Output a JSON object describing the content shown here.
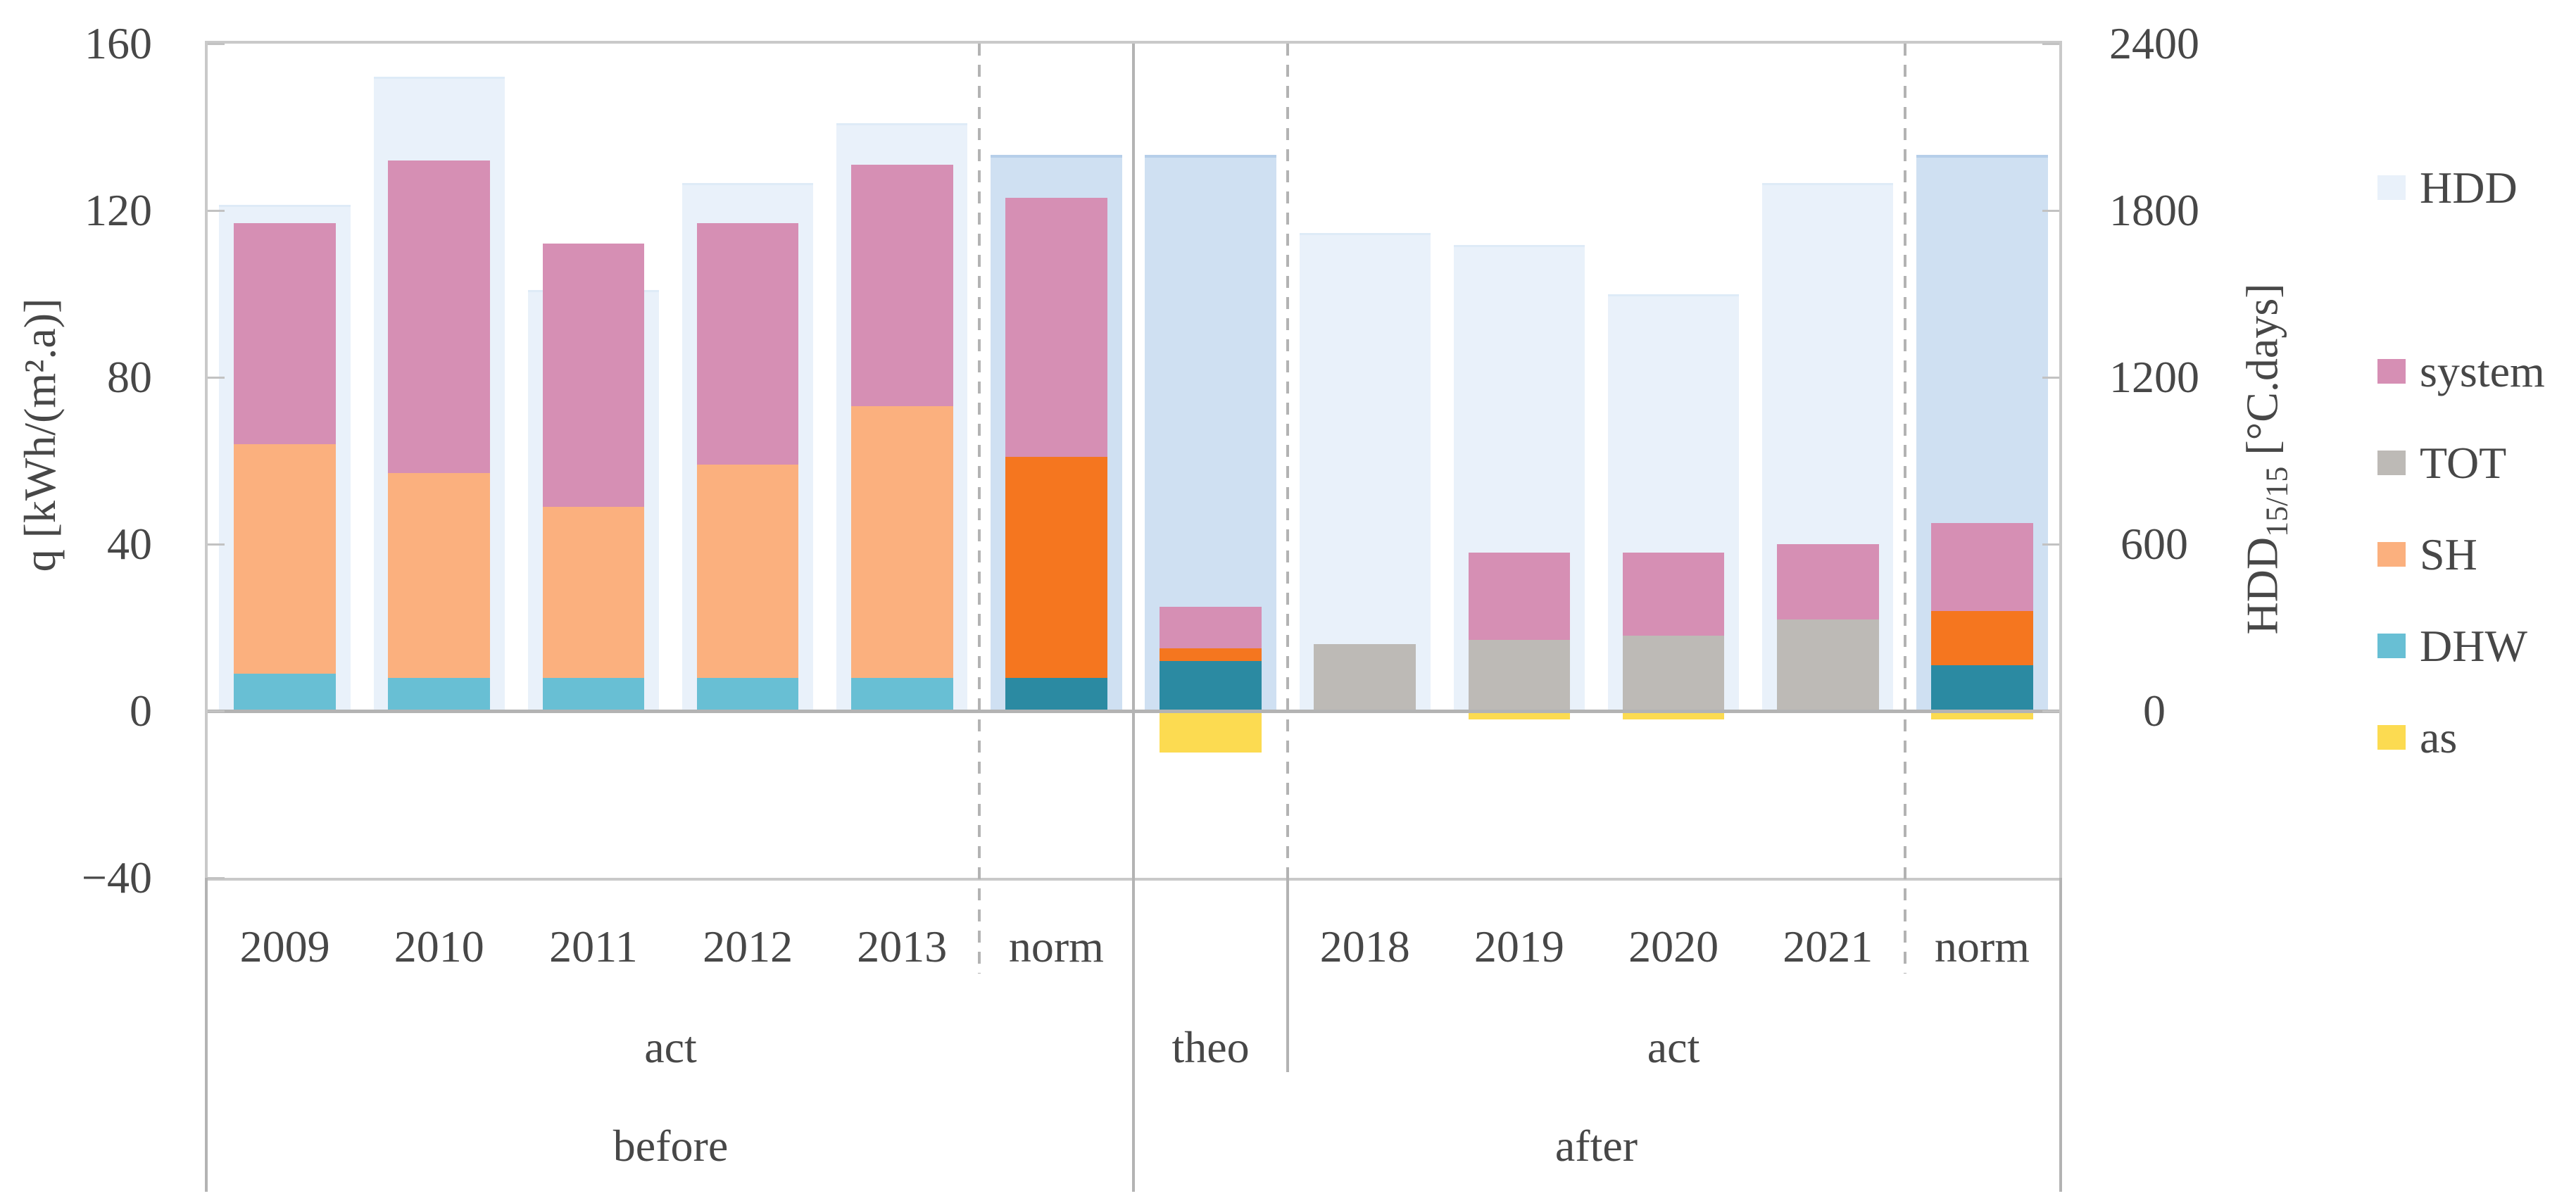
{
  "chart_data": {
    "type": "bar",
    "title": "",
    "description": "Stacked energy-use bars (q) with heating-degree-day (HDD) background bars, before and after retrofit",
    "left_axis": {
      "title": "q [kWh/(m².a)]",
      "range": [
        -40,
        160
      ],
      "ticks": [
        {
          "text": "160",
          "v": 160
        },
        {
          "text": "120",
          "v": 120
        },
        {
          "text": "80",
          "v": 80
        },
        {
          "text": "40",
          "v": 40
        },
        {
          "text": "0",
          "v": 0
        },
        {
          "text": "−40",
          "v": -40
        }
      ]
    },
    "right_axis": {
      "title_main": "HDD",
      "title_sub": "15/15",
      "title_rest": " [°C.days]",
      "range": [
        0,
        2400
      ],
      "hdd_per_q_unit": 15,
      "ticks": [
        {
          "text": "2400",
          "v": 2400
        },
        {
          "text": "1800",
          "v": 1800
        },
        {
          "text": "1200",
          "v": 1200
        },
        {
          "text": "600",
          "v": 600
        },
        {
          "text": "0",
          "v": 0
        }
      ]
    },
    "legend": [
      {
        "label": "HDD",
        "series": "hdd"
      },
      {
        "label": "system",
        "series": "system"
      },
      {
        "label": "TOT",
        "series": "tot"
      },
      {
        "label": "SH",
        "series": "sh"
      },
      {
        "label": "DHW",
        "series": "dhw"
      },
      {
        "label": "as",
        "series": "as"
      }
    ],
    "categories": [
      {
        "label": "2009",
        "variant": "light",
        "hdd": 1820,
        "as": 0,
        "stack": [
          {
            "series": "dhw",
            "value": 9
          },
          {
            "series": "sh",
            "value": 55
          },
          {
            "series": "system",
            "value": 53
          }
        ]
      },
      {
        "label": "2010",
        "variant": "light",
        "hdd": 2280,
        "as": 0,
        "stack": [
          {
            "series": "dhw",
            "value": 8
          },
          {
            "series": "sh",
            "value": 49
          },
          {
            "series": "system",
            "value": 75
          }
        ]
      },
      {
        "label": "2011",
        "variant": "light",
        "hdd": 1515,
        "as": 0,
        "stack": [
          {
            "series": "dhw",
            "value": 8
          },
          {
            "series": "sh",
            "value": 41
          },
          {
            "series": "system",
            "value": 63
          }
        ]
      },
      {
        "label": "2012",
        "variant": "light",
        "hdd": 1900,
        "as": 0,
        "stack": [
          {
            "series": "dhw",
            "value": 8
          },
          {
            "series": "sh",
            "value": 51
          },
          {
            "series": "system",
            "value": 58
          }
        ]
      },
      {
        "label": "2013",
        "variant": "light",
        "hdd": 2115,
        "as": 0,
        "stack": [
          {
            "series": "dhw",
            "value": 8
          },
          {
            "series": "sh",
            "value": 65
          },
          {
            "series": "system",
            "value": 58
          }
        ]
      },
      {
        "label": "norm",
        "variant": "dark",
        "hdd": 2000,
        "as": 0,
        "stack": [
          {
            "series": "dhw",
            "value": 8
          },
          {
            "series": "sh",
            "value": 53
          },
          {
            "series": "system",
            "value": 62
          }
        ]
      },
      {
        "label": "",
        "variant": "dark",
        "hdd": 2000,
        "as": -10,
        "stack": [
          {
            "series": "dhw",
            "value": 12
          },
          {
            "series": "sh",
            "value": 3
          },
          {
            "series": "system",
            "value": 10
          }
        ]
      },
      {
        "label": "2018",
        "variant": "light",
        "hdd": 1720,
        "as": 0,
        "stack": [
          {
            "series": "tot",
            "value": 16
          }
        ]
      },
      {
        "label": "2019",
        "variant": "light",
        "hdd": 1675,
        "as": -2,
        "stack": [
          {
            "series": "tot",
            "value": 17
          },
          {
            "series": "system",
            "value": 21
          }
        ]
      },
      {
        "label": "2020",
        "variant": "light",
        "hdd": 1500,
        "as": -2,
        "stack": [
          {
            "series": "tot",
            "value": 18
          },
          {
            "series": "system",
            "value": 20
          }
        ]
      },
      {
        "label": "2021",
        "variant": "light",
        "hdd": 1900,
        "as": 0,
        "stack": [
          {
            "series": "tot",
            "value": 22
          },
          {
            "series": "system",
            "value": 18
          }
        ]
      },
      {
        "label": "norm",
        "variant": "dark",
        "hdd": 2000,
        "as": -2,
        "stack": [
          {
            "series": "dhw",
            "value": 11
          },
          {
            "series": "sh",
            "value": 13
          },
          {
            "series": "system",
            "value": 21
          }
        ]
      }
    ],
    "mid_groups": [
      {
        "label": "act",
        "from": 0,
        "to": 6
      },
      {
        "label": "theo",
        "from": 6,
        "to": 7
      },
      {
        "label": "act",
        "from": 7,
        "to": 12
      }
    ],
    "top_groups": [
      {
        "label": "before",
        "from": 0,
        "to": 6
      },
      {
        "label": "after",
        "from": 6,
        "to": 12
      }
    ],
    "dividers": {
      "dashed_slots": [
        5,
        7,
        11
      ],
      "solid_slots": [
        6
      ]
    }
  },
  "colors": {
    "hdd_light": "#e9f1fa",
    "hdd_dark": "#cfe0f2",
    "system": "#d68fb4",
    "tot": "#bdbab6",
    "sh_light": "#fbb07e",
    "sh_dark": "#f5761f",
    "dhw_light": "#68bfd4",
    "dhw_dark": "#2b8aa2",
    "as": "#fcdb51",
    "axis_text": "#474747",
    "plot_border": "#c9c9c9",
    "divider_line": "#b3b3b3",
    "tick_mark": "#c2c2c2"
  }
}
